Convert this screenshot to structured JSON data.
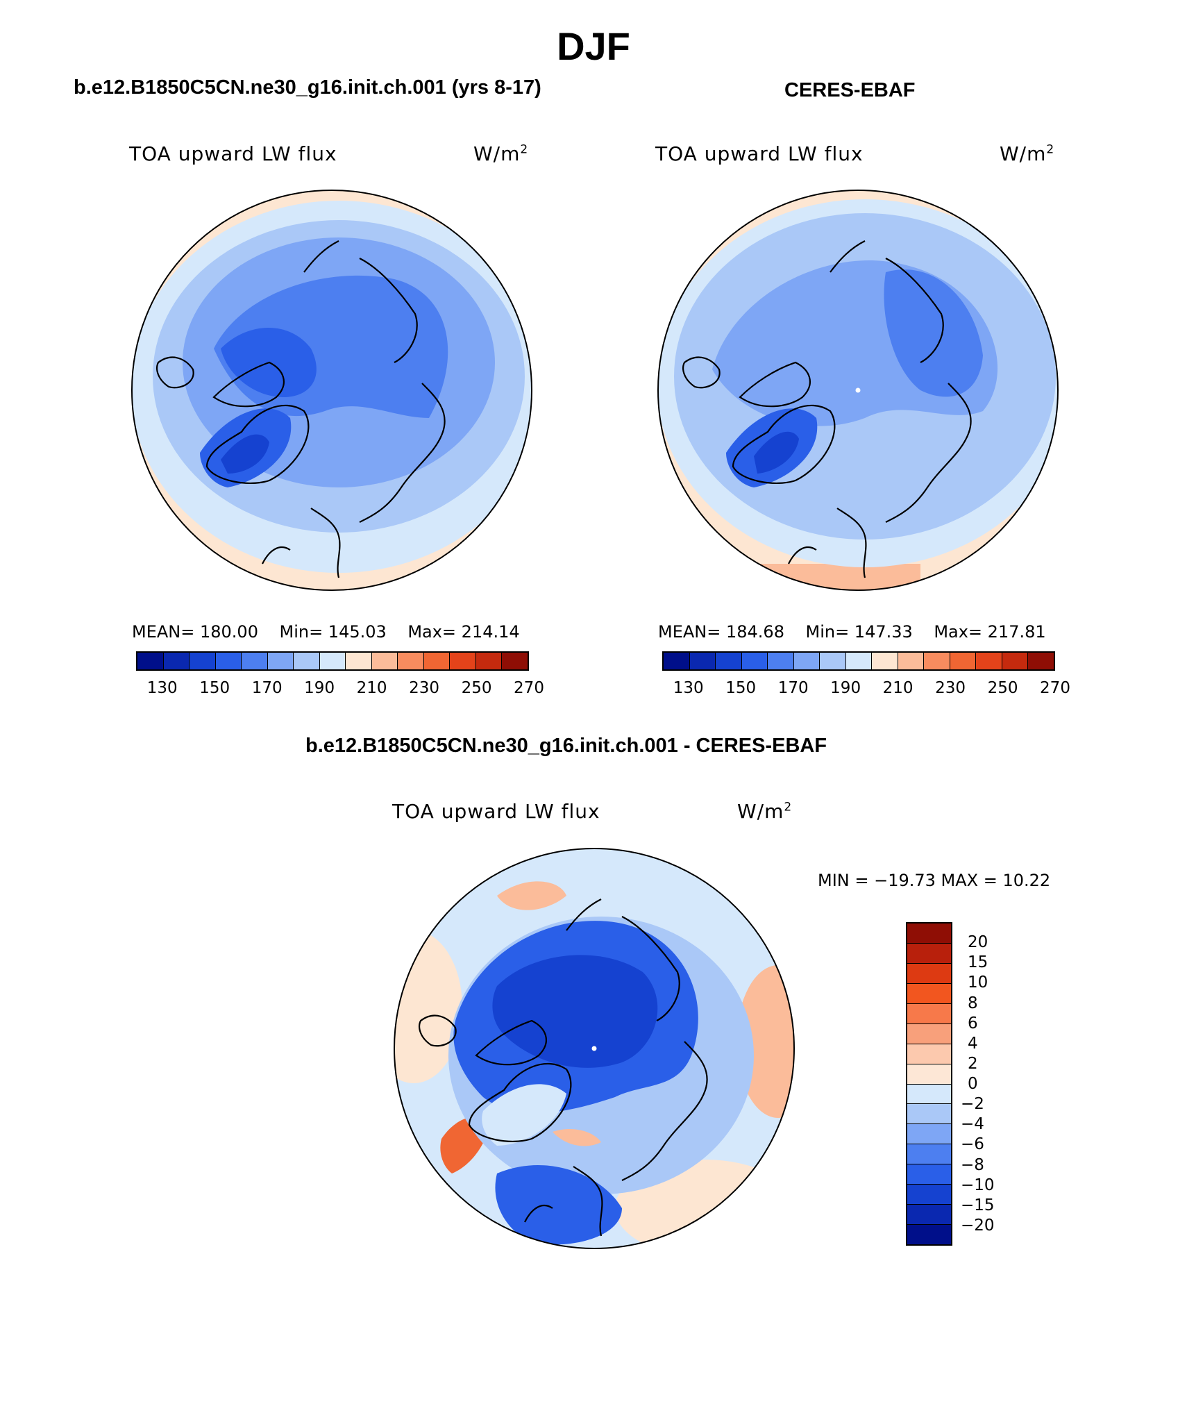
{
  "title": "DJF",
  "panels": [
    {
      "id": "model",
      "case_title": "b.e12.B1850C5CN.ne30_g16.init.ch.001 (yrs 8-17)",
      "field": "TOA upward LW flux",
      "units": "W/m",
      "units_sup": "2",
      "stats": {
        "mean": "MEAN= 180.00",
        "min": "Min= 145.03",
        "max": "Max= 214.14"
      }
    },
    {
      "id": "obs",
      "case_title": "CERES-EBAF",
      "field": "TOA upward LW flux",
      "units": "W/m",
      "units_sup": "2",
      "stats": {
        "mean": "MEAN= 184.68",
        "min": "Min= 147.33",
        "max": "Max= 217.81"
      }
    },
    {
      "id": "diff",
      "case_title": "b.e12.B1850C5CN.ne30_g16.init.ch.001 - CERES-EBAF",
      "field": "TOA upward LW flux",
      "units": "W/m",
      "units_sup": "2",
      "stats": {
        "text": "MIN = −19.73 MAX =   10.22"
      }
    }
  ],
  "abs_colorbar": {
    "colors": [
      "#000f8a",
      "#0a28b0",
      "#1542d0",
      "#2a5fe8",
      "#4d7ff0",
      "#7ea6f5",
      "#aac8f7",
      "#d5e8fb",
      "#fde6d2",
      "#fbbc9a",
      "#f88c5f",
      "#f06633",
      "#e4431a",
      "#c52a0e",
      "#8f0e05"
    ],
    "tick_labels": [
      "130",
      "150",
      "170",
      "190",
      "210",
      "230",
      "250",
      "270"
    ]
  },
  "diff_colorbar": {
    "colors": [
      "#8f0e05",
      "#b8200c",
      "#dd3a12",
      "#f2561f",
      "#f7794a",
      "#f8a07b",
      "#fcc9ae",
      "#fde7d6",
      "#d5e8fb",
      "#aac8f7",
      "#7ea6f5",
      "#4d7ff0",
      "#2a5fe8",
      "#1542d0",
      "#0a28b0",
      "#000f8a"
    ],
    "tick_labels": [
      "20",
      "15",
      "10",
      "8",
      "6",
      "4",
      "2",
      "0",
      "−2",
      "−4",
      "−6",
      "−8",
      "−10",
      "−15",
      "−20"
    ]
  },
  "map_colors": {
    "outer_warm": "#fde6d2",
    "warm_mid": "#fbbc9a",
    "warm_strong": "#f06633",
    "light_blue": "#d5e8fb",
    "pale_blue": "#aac8f7",
    "mid_blue": "#7ea6f5",
    "blue": "#4d7ff0",
    "deep_blue": "#2a5fe8",
    "deeper_blue": "#1542d0",
    "darkest_blue": "#0a28b0",
    "coast": "#000000"
  },
  "icons": [
    "north-pole-marker-icon"
  ]
}
